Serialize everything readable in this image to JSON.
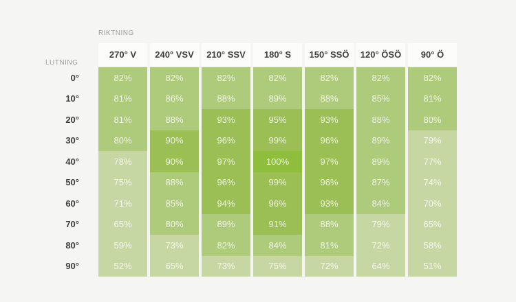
{
  "chart_data": {
    "type": "heatmap",
    "column_axis_label": "RIKTNING",
    "row_axis_label": "LUTNING",
    "columns": [
      "270° V",
      "240° VSV",
      "210° SSV",
      "180° S",
      "150° SSÖ",
      "120° ÖSÖ",
      "90° Ö"
    ],
    "rows": [
      "0°",
      "10°",
      "20°",
      "30°",
      "40°",
      "50°",
      "60°",
      "70°",
      "80°",
      "90°"
    ],
    "unit": "%",
    "values": [
      [
        82,
        82,
        82,
        82,
        82,
        82,
        82
      ],
      [
        81,
        86,
        88,
        89,
        88,
        85,
        81
      ],
      [
        81,
        88,
        93,
        95,
        93,
        88,
        80
      ],
      [
        80,
        90,
        96,
        99,
        96,
        89,
        79
      ],
      [
        78,
        90,
        97,
        100,
        97,
        89,
        77
      ],
      [
        75,
        88,
        96,
        99,
        96,
        87,
        74
      ],
      [
        71,
        85,
        94,
        96,
        93,
        84,
        70
      ],
      [
        65,
        80,
        89,
        91,
        88,
        79,
        65
      ],
      [
        59,
        73,
        82,
        84,
        81,
        72,
        58
      ],
      [
        52,
        65,
        73,
        75,
        72,
        64,
        51
      ]
    ],
    "value_range": [
      51,
      100
    ],
    "color_bands": [
      {
        "min": 100,
        "color": "#8EBE3C"
      },
      {
        "min": 90,
        "color": "#9CBF55"
      },
      {
        "min": 80,
        "color": "#AECA7B"
      },
      {
        "min": 0,
        "color": "#C7D7A3"
      }
    ],
    "legend": "none",
    "grid": "off"
  },
  "colors": {
    "page_bg": "#F5F5F3",
    "header_bg": "#FCFCFB",
    "header_text": "#3F3F3F",
    "row_label_text": "#3E3E3E",
    "axis_label_text": "#9C9C9A",
    "cell_text": "rgba(255,255,255,0.82)"
  }
}
